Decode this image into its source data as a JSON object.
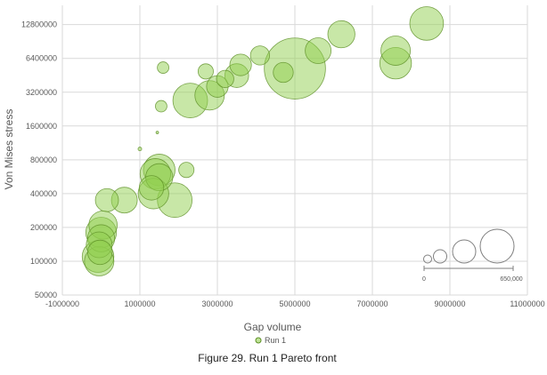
{
  "chart_data": {
    "type": "bubble",
    "xlabel": "Gap volume",
    "ylabel": "Von Mises stress",
    "x_ticks": [
      "-1000000",
      "1000000",
      "3000000",
      "5000000",
      "7000000",
      "9000000",
      "11000000"
    ],
    "y_ticks": [
      "50000",
      "100000",
      "200000",
      "400000",
      "800000",
      "1600000",
      "3200000",
      "6400000",
      "12800000"
    ],
    "xlim": [
      -1000000,
      11000000
    ],
    "y_scale": "log",
    "ylim": [
      50000,
      19000000
    ],
    "grid": true,
    "legend_position": "bottom-center",
    "bubble_color": "#92d050",
    "bubble_stroke": "#5d8f25",
    "size_scale": {
      "min_label": "0",
      "max_label": "650,000"
    },
    "series": [
      {
        "name": "Run 1",
        "points": [
          {
            "x": 8400000,
            "y": 13100000,
            "size": 170000
          },
          {
            "x": 6200000,
            "y": 10500000,
            "size": 110000
          },
          {
            "x": 7600000,
            "y": 7500000,
            "size": 130000
          },
          {
            "x": 5600000,
            "y": 7500000,
            "size": 100000
          },
          {
            "x": 4100000,
            "y": 6800000,
            "size": 55000
          },
          {
            "x": 7600000,
            "y": 5800000,
            "size": 150000
          },
          {
            "x": 3600000,
            "y": 5600000,
            "size": 70000
          },
          {
            "x": 5000000,
            "y": 5200000,
            "size": 560000
          },
          {
            "x": 1600000,
            "y": 5300000,
            "size": 20000
          },
          {
            "x": 2700000,
            "y": 4900000,
            "size": 35000
          },
          {
            "x": 4700000,
            "y": 4800000,
            "size": 60000
          },
          {
            "x": 3500000,
            "y": 4500000,
            "size": 85000
          },
          {
            "x": 3200000,
            "y": 4200000,
            "size": 45000
          },
          {
            "x": 3000000,
            "y": 3600000,
            "size": 70000
          },
          {
            "x": 2800000,
            "y": 3000000,
            "size": 130000
          },
          {
            "x": 2300000,
            "y": 2700000,
            "size": 180000
          },
          {
            "x": 1550000,
            "y": 2400000,
            "size": 20000
          },
          {
            "x": 1450000,
            "y": 1400000,
            "size": 1000
          },
          {
            "x": 1000000,
            "y": 1000000,
            "size": 2000
          },
          {
            "x": 2200000,
            "y": 650000,
            "size": 35000
          },
          {
            "x": 1500000,
            "y": 650000,
            "size": 150000
          },
          {
            "x": 1400000,
            "y": 600000,
            "size": 140000
          },
          {
            "x": 1500000,
            "y": 560000,
            "size": 110000
          },
          {
            "x": 1300000,
            "y": 450000,
            "size": 90000
          },
          {
            "x": 1350000,
            "y": 400000,
            "size": 140000
          },
          {
            "x": 1900000,
            "y": 350000,
            "size": 180000
          },
          {
            "x": 600000,
            "y": 350000,
            "size": 100000
          },
          {
            "x": 150000,
            "y": 350000,
            "size": 80000
          },
          {
            "x": 50000,
            "y": 210000,
            "size": 120000
          },
          {
            "x": 0,
            "y": 180000,
            "size": 140000
          },
          {
            "x": 0,
            "y": 160000,
            "size": 110000
          },
          {
            "x": -50000,
            "y": 140000,
            "size": 100000
          },
          {
            "x": -30000,
            "y": 120000,
            "size": 90000
          },
          {
            "x": -80000,
            "y": 110000,
            "size": 150000
          },
          {
            "x": -50000,
            "y": 100000,
            "size": 130000
          }
        ]
      }
    ]
  },
  "caption": "Figure 29. Run 1 Pareto front"
}
